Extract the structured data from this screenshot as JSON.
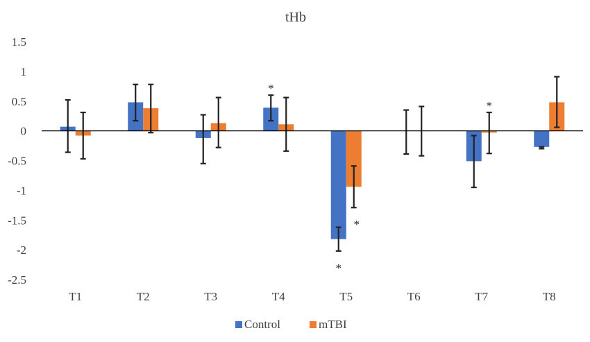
{
  "chart_data": {
    "type": "bar",
    "title": "tHb",
    "xlabel": "",
    "ylabel": "",
    "ylim": [
      -2.5,
      1.5
    ],
    "yticks": [
      1.5,
      1,
      0.5,
      0,
      -0.5,
      -1,
      -1.5,
      -2,
      -2.5
    ],
    "ytick_labels": [
      "1.5",
      "1",
      "0.5",
      "0",
      "-0.5",
      "-1",
      "-1.5",
      "-2",
      "-2.5"
    ],
    "categories": [
      "T1",
      "T2",
      "T3",
      "T4",
      "T5",
      "T6",
      "T7",
      "T8"
    ],
    "series": [
      {
        "name": "Control",
        "color": "#4472C4",
        "values": [
          0.07,
          0.48,
          -0.12,
          0.39,
          -1.82,
          0.0,
          -0.51,
          -0.27
        ],
        "err_low": [
          -0.36,
          0.17,
          -0.55,
          0.17,
          -2.02,
          -0.39,
          -0.95,
          -0.3
        ],
        "err_high": [
          0.52,
          0.78,
          0.27,
          0.6,
          -1.62,
          0.35,
          -0.08,
          -0.27
        ],
        "significance": [
          "",
          "",
          "",
          "*",
          "*",
          "",
          "",
          ""
        ]
      },
      {
        "name": "mTBI",
        "color": "#ED7D31",
        "values": [
          -0.08,
          0.38,
          0.13,
          0.11,
          -0.94,
          0.0,
          -0.03,
          0.48
        ],
        "err_low": [
          -0.47,
          -0.03,
          -0.28,
          -0.34,
          -1.29,
          -0.42,
          -0.38,
          0.06
        ],
        "err_high": [
          0.31,
          0.78,
          0.56,
          0.56,
          -0.59,
          0.41,
          0.31,
          0.91
        ],
        "significance": [
          "",
          "",
          "",
          "",
          "*",
          "",
          "*",
          ""
        ]
      }
    ],
    "legend": {
      "position": "bottom"
    },
    "grid": false
  }
}
